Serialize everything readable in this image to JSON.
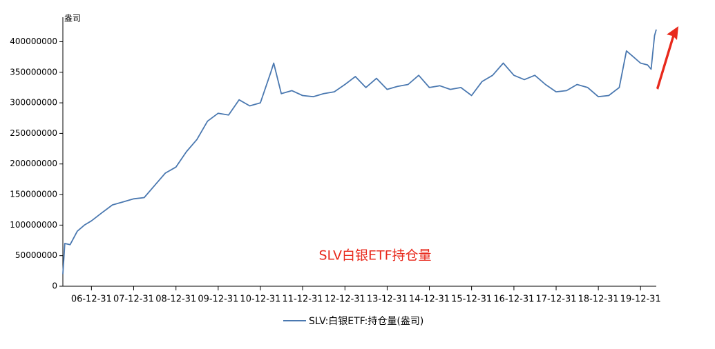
{
  "chart_data": {
    "type": "line",
    "y_label": "盎司",
    "annotation": "SLV白银ETF持仓量",
    "x": [
      "06-04-28",
      "06-05-15",
      "06-06-30",
      "06-08-31",
      "06-10-31",
      "06-12-31",
      "07-03-31",
      "07-06-30",
      "07-09-30",
      "07-12-31",
      "08-03-31",
      "08-06-30",
      "08-09-30",
      "08-12-31",
      "09-03-31",
      "09-06-30",
      "09-09-30",
      "09-12-31",
      "10-03-31",
      "10-06-30",
      "10-09-30",
      "10-12-31",
      "11-03-31",
      "11-04-25",
      "11-06-30",
      "11-09-30",
      "11-12-31",
      "12-03-31",
      "12-06-30",
      "12-09-30",
      "12-12-31",
      "13-03-31",
      "13-06-30",
      "13-09-30",
      "13-12-31",
      "14-03-31",
      "14-06-30",
      "14-09-30",
      "14-12-31",
      "15-03-31",
      "15-06-30",
      "15-09-30",
      "15-12-31",
      "16-03-31",
      "16-06-30",
      "16-09-30",
      "16-12-31",
      "17-03-31",
      "17-06-30",
      "17-09-30",
      "17-12-31",
      "18-03-31",
      "18-06-30",
      "18-09-30",
      "18-12-31",
      "19-03-31",
      "19-06-30",
      "19-08-31",
      "19-10-31",
      "19-12-31",
      "20-02-29",
      "20-03-31",
      "20-04-30",
      "20-05-15"
    ],
    "series": [
      {
        "name": "SLV:白银ETF:持仓量(盎司)",
        "color": "#4a78b0",
        "values": [
          20000000,
          70000000,
          68000000,
          90000000,
          100000000,
          107000000,
          120000000,
          133000000,
          138000000,
          143000000,
          145000000,
          165000000,
          185000000,
          195000000,
          220000000,
          240000000,
          270000000,
          283000000,
          280000000,
          305000000,
          295000000,
          300000000,
          350000000,
          365000000,
          315000000,
          320000000,
          312000000,
          310000000,
          315000000,
          318000000,
          330000000,
          343000000,
          325000000,
          340000000,
          322000000,
          327000000,
          330000000,
          345000000,
          325000000,
          328000000,
          322000000,
          325000000,
          312000000,
          335000000,
          345000000,
          365000000,
          345000000,
          338000000,
          345000000,
          330000000,
          318000000,
          320000000,
          330000000,
          325000000,
          310000000,
          312000000,
          325000000,
          385000000,
          375000000,
          365000000,
          362000000,
          355000000,
          410000000,
          420000000
        ]
      }
    ],
    "xlim": [
      "06-04-28",
      "20-05-15"
    ],
    "xticks": [
      "06-12-31",
      "07-12-31",
      "08-12-31",
      "09-12-31",
      "10-12-31",
      "11-12-31",
      "12-12-31",
      "13-12-31",
      "14-12-31",
      "15-12-31",
      "16-12-31",
      "17-12-31",
      "18-12-31",
      "19-12-31"
    ],
    "ylim": [
      0,
      440000000
    ],
    "yticks": [
      0,
      50000000,
      100000000,
      150000000,
      200000000,
      250000000,
      300000000,
      350000000,
      400000000
    ]
  }
}
